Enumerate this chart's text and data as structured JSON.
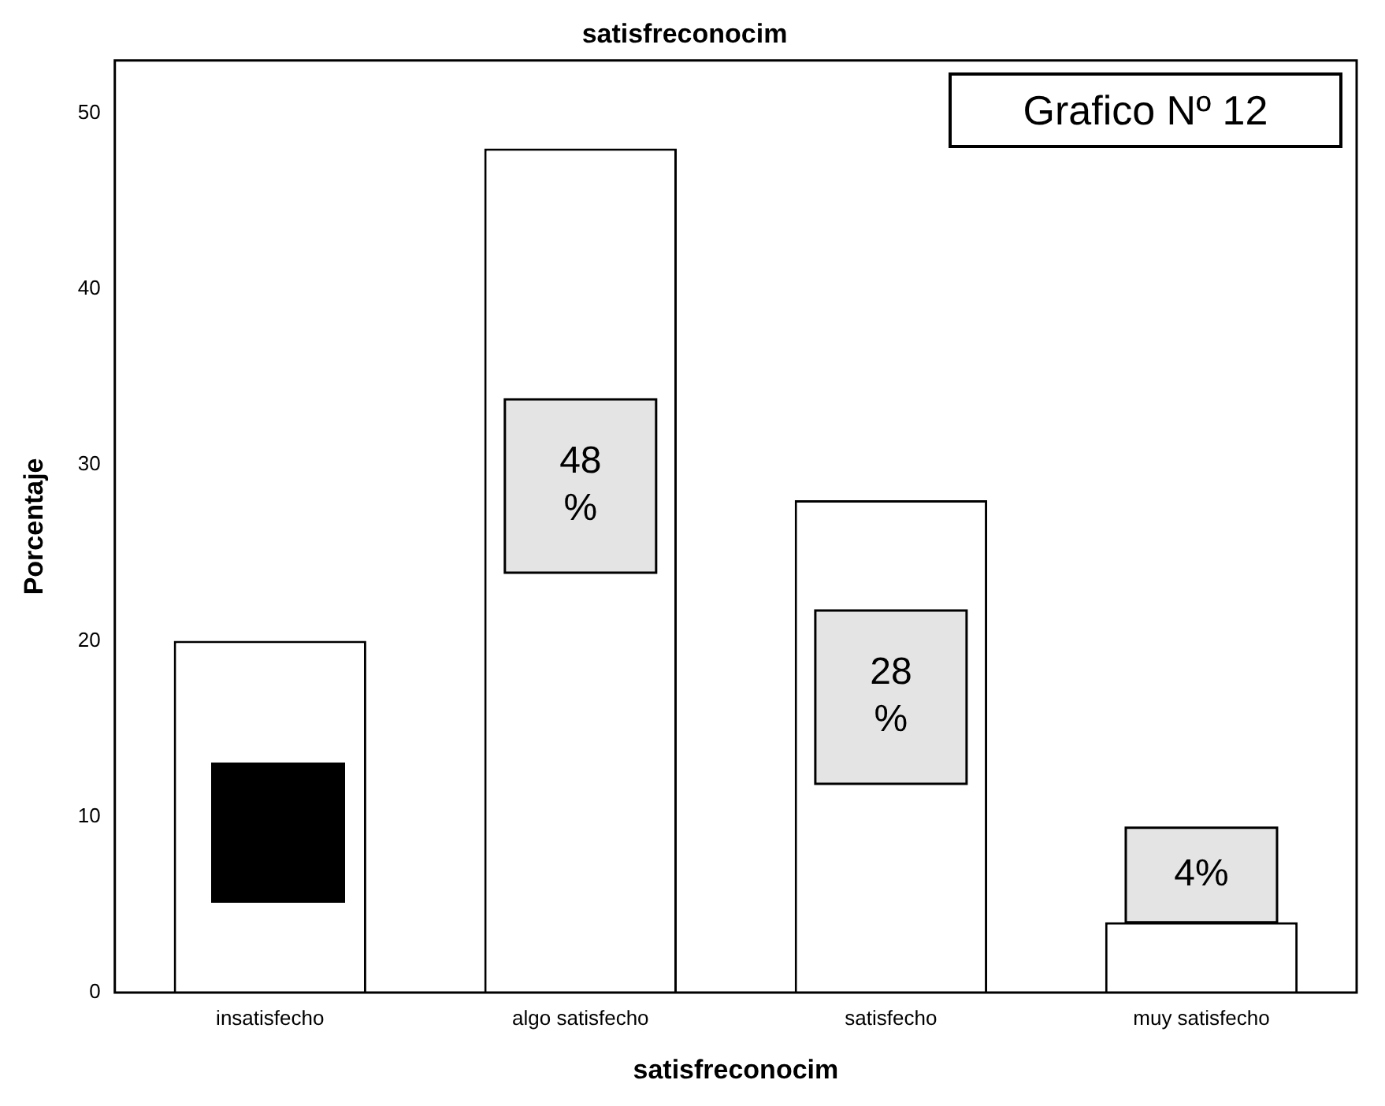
{
  "chart_data": {
    "type": "bar",
    "title": "satisfreconocim",
    "xlabel": "satisfreconocim",
    "ylabel": "Porcentaje",
    "categories": [
      "insatisfecho",
      "algo satisfecho",
      "satisfecho",
      "muy satisfecho"
    ],
    "values": [
      20,
      48,
      28,
      4
    ],
    "color": "#ffffff",
    "value_labels": [
      null,
      "48 %",
      "28 %",
      "4%"
    ],
    "annotations": [
      "Grafico Nº 12"
    ],
    "ylim": [
      0,
      53
    ],
    "yticks": [
      0,
      10,
      20,
      30,
      40,
      50
    ],
    "grid": false,
    "legend": false
  }
}
